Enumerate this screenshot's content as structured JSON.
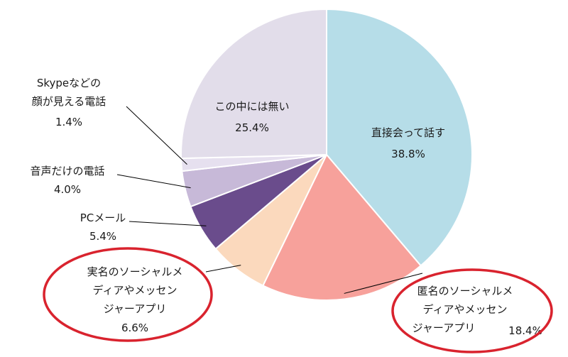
{
  "chart_data": {
    "type": "pie",
    "title": "",
    "slices": [
      {
        "lines": [
          "直接会って話す"
        ],
        "value": 38.8,
        "value_label": "38.8%",
        "color": "#b6dde8"
      },
      {
        "lines": [
          "匿名のソーシャルメ",
          "ディアやメッセン",
          "ジャーアプリ"
        ],
        "value": 18.4,
        "value_label": "18.4%",
        "color": "#f7a19b"
      },
      {
        "lines": [
          "実名のソーシャルメ",
          "ディアやメッセン",
          "ジャーアプリ"
        ],
        "value": 6.6,
        "value_label": "6.6%",
        "color": "#fbd9bd"
      },
      {
        "lines": [
          "PCメール"
        ],
        "value": 5.4,
        "value_label": "5.4%",
        "color": "#6a4c8c"
      },
      {
        "lines": [
          "音声だけの電話"
        ],
        "value": 4.0,
        "value_label": "4.0%",
        "color": "#c7b9d8"
      },
      {
        "lines": [
          "Skypeなどの",
          "顔が見える電話"
        ],
        "value": 1.4,
        "value_label": "1.4%",
        "color": "#e6e0ef"
      },
      {
        "lines": [
          "この中には無い"
        ],
        "value": 25.4,
        "value_label": "25.4%",
        "color": "#e2ddea"
      }
    ],
    "highlighted": [
      "匿名のソーシャルメディアやメッセンジャーアプリ",
      "実名のソーシャルメディアやメッセンジャーアプリ"
    ],
    "highlight_color": "#d9232e"
  }
}
